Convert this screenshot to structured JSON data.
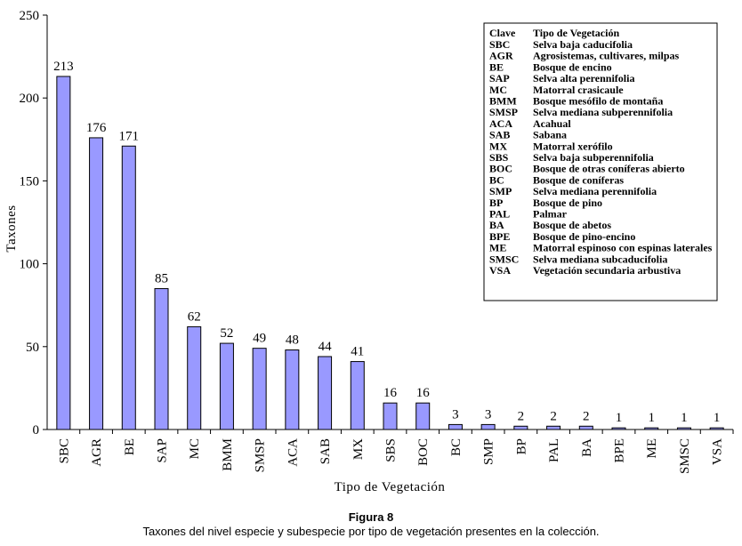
{
  "chart_data": {
    "type": "bar",
    "ylabel": "Taxones",
    "xlabel": "Tipo de Vegetación",
    "ylim": [
      0,
      250
    ],
    "yticks": [
      0,
      50,
      100,
      150,
      200,
      250
    ],
    "bar_color": "#9999ff",
    "categories": [
      "SBC",
      "AGR",
      "BE",
      "SAP",
      "MC",
      "BMM",
      "SMSP",
      "ACA",
      "SAB",
      "MX",
      "SBS",
      "BOC",
      "BC",
      "SMP",
      "BP",
      "PAL",
      "BA",
      "BPE",
      "ME",
      "SMSC",
      "VSA"
    ],
    "values": [
      213,
      176,
      171,
      85,
      62,
      52,
      49,
      48,
      44,
      41,
      16,
      16,
      3,
      3,
      2,
      2,
      2,
      1,
      1,
      1,
      1
    ],
    "legend": {
      "header": [
        "Clave",
        "Tipo de Vegetación"
      ],
      "entries": [
        [
          "SBC",
          "Selva baja caducifolia"
        ],
        [
          "AGR",
          "Agrosistemas, cultivares, milpas"
        ],
        [
          "BE",
          "Bosque de encino"
        ],
        [
          "SAP",
          "Selva alta perennifolia"
        ],
        [
          "MC",
          "Matorral crasicaule"
        ],
        [
          "BMM",
          "Bosque mesófilo de montaña"
        ],
        [
          "SMSP",
          "Selva mediana subperennifolia"
        ],
        [
          "ACA",
          "Acahual"
        ],
        [
          "SAB",
          "Sabana"
        ],
        [
          "MX",
          "Matorral xerófilo"
        ],
        [
          "SBS",
          "Selva baja subperennifolia"
        ],
        [
          "BOC",
          "Bosque de otras coníferas abierto"
        ],
        [
          "BC",
          "Bosque de coníferas"
        ],
        [
          "SMP",
          "Selva mediana perennifolia"
        ],
        [
          "BP",
          "Bosque de pino"
        ],
        [
          "PAL",
          "Palmar"
        ],
        [
          "BA",
          "Bosque de abetos"
        ],
        [
          "BPE",
          "Bosque de pino-encino"
        ],
        [
          "ME",
          "Matorral espinoso con espinas laterales"
        ],
        [
          "SMSC",
          "Selva mediana subcaducifolia"
        ],
        [
          "VSA",
          "Vegetación secundaria arbustiva"
        ]
      ]
    }
  },
  "figure": {
    "title": "Figura 8",
    "caption": "Taxones del nivel especie y subespecie por tipo de vegetación presentes en la colección."
  }
}
